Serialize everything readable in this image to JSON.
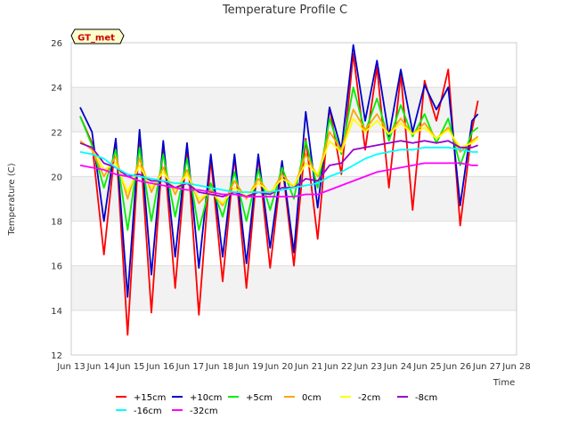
{
  "chart_data": {
    "type": "line",
    "title": "Temperature Profile C",
    "xlabel": "Time",
    "ylabel": "Temperature (C)",
    "ylim": [
      12,
      26
    ],
    "xlim": [
      13,
      28
    ],
    "y_ticks": [
      12,
      14,
      16,
      18,
      20,
      22,
      24,
      26
    ],
    "x_ticks": [
      {
        "v": 13,
        "label": "Jun 13"
      },
      {
        "v": 14,
        "label": "Jun 14"
      },
      {
        "v": 15,
        "label": "Jun 15"
      },
      {
        "v": 16,
        "label": "Jun 16"
      },
      {
        "v": 17,
        "label": "Jun 17"
      },
      {
        "v": 18,
        "label": "Jun 18"
      },
      {
        "v": 19,
        "label": "Jun 19"
      },
      {
        "v": 20,
        "label": "Jun 20"
      },
      {
        "v": 21,
        "label": "Jun 21"
      },
      {
        "v": 22,
        "label": "Jun 22"
      },
      {
        "v": 23,
        "label": "Jun 23"
      },
      {
        "v": 24,
        "label": "Jun 24"
      },
      {
        "v": 25,
        "label": "Jun 25"
      },
      {
        "v": 26,
        "label": "Jun 26"
      },
      {
        "v": 27,
        "label": "Jun 27"
      },
      {
        "v": 28,
        "label": "Jun 28"
      }
    ],
    "grid": true,
    "legend_position": "bottom",
    "annotation": {
      "text": "GT_met",
      "bg": "#ffffcc",
      "color": "#cc0000"
    },
    "x": [
      13.3,
      13.7,
      14.1,
      14.5,
      14.9,
      15.3,
      15.7,
      16.1,
      16.5,
      16.9,
      17.3,
      17.7,
      18.1,
      18.5,
      18.9,
      19.3,
      19.7,
      20.1,
      20.5,
      20.9,
      21.3,
      21.7,
      22.1,
      22.5,
      22.9,
      23.3,
      23.7,
      24.1,
      24.5,
      24.9,
      25.3,
      25.7,
      26.1,
      26.5,
      26.7
    ],
    "series": [
      {
        "name": "+15cm",
        "color": "#ff0000",
        "values": [
          22.7,
          21.5,
          16.5,
          21.6,
          12.9,
          21.8,
          13.9,
          21.5,
          15.0,
          21.4,
          13.8,
          20.8,
          15.3,
          20.9,
          15.0,
          20.9,
          15.9,
          20.6,
          16.0,
          21.7,
          17.2,
          23.1,
          20.1,
          25.5,
          21.2,
          24.9,
          19.5,
          24.6,
          18.5,
          24.3,
          22.5,
          24.8,
          17.8,
          22.1,
          23.4
        ]
      },
      {
        "name": "+10cm",
        "color": "#0000cc",
        "values": [
          23.1,
          22.0,
          18.0,
          21.7,
          14.6,
          22.1,
          15.6,
          21.6,
          16.4,
          21.5,
          15.9,
          21.0,
          16.4,
          21.0,
          16.1,
          21.0,
          16.8,
          20.7,
          16.6,
          22.9,
          18.6,
          23.1,
          21.2,
          25.9,
          22.5,
          25.2,
          21.8,
          24.8,
          22.0,
          24.1,
          23.0,
          24.0,
          18.7,
          22.5,
          22.8
        ]
      },
      {
        "name": "+5cm",
        "color": "#00ee00",
        "values": [
          22.7,
          21.4,
          19.5,
          21.2,
          17.6,
          21.3,
          18.0,
          21.0,
          18.2,
          20.8,
          17.6,
          19.7,
          18.2,
          20.2,
          18.0,
          20.3,
          18.5,
          20.4,
          19.0,
          21.6,
          19.5,
          22.6,
          21.0,
          24.0,
          22.0,
          23.5,
          21.6,
          23.2,
          21.8,
          22.8,
          21.5,
          22.6,
          20.5,
          22.0,
          22.2
        ]
      },
      {
        "name": "0cm",
        "color": "#ffa500",
        "values": [
          21.6,
          21.2,
          20.0,
          20.9,
          19.0,
          20.8,
          19.3,
          20.4,
          19.2,
          20.3,
          18.8,
          19.4,
          18.7,
          19.8,
          19.0,
          19.9,
          19.2,
          20.1,
          19.5,
          21.0,
          20.0,
          22.0,
          21.2,
          23.0,
          22.1,
          22.8,
          21.9,
          22.6,
          21.9,
          22.4,
          21.7,
          22.2,
          21.1,
          21.6,
          21.8
        ]
      },
      {
        "name": "-2cm",
        "color": "#ffff00",
        "values": [
          21.5,
          21.3,
          20.3,
          20.6,
          19.3,
          20.5,
          19.5,
          20.2,
          19.4,
          20.1,
          19.0,
          19.3,
          18.8,
          19.5,
          19.1,
          19.7,
          19.3,
          19.9,
          19.6,
          20.6,
          20.1,
          21.6,
          21.1,
          22.6,
          22.0,
          22.5,
          21.9,
          22.4,
          21.9,
          22.2,
          21.7,
          22.1,
          21.3,
          21.5,
          21.7
        ]
      },
      {
        "name": "-8cm",
        "color": "#9900cc",
        "values": [
          21.5,
          21.3,
          20.6,
          20.4,
          20.0,
          20.1,
          19.8,
          19.8,
          19.5,
          19.7,
          19.3,
          19.2,
          19.1,
          19.3,
          19.1,
          19.3,
          19.2,
          19.5,
          19.5,
          19.9,
          19.8,
          20.5,
          20.6,
          21.2,
          21.3,
          21.4,
          21.5,
          21.6,
          21.5,
          21.6,
          21.5,
          21.6,
          21.3,
          21.3,
          21.4
        ]
      },
      {
        "name": "-16cm",
        "color": "#00ffff",
        "values": [
          21.1,
          21.0,
          20.8,
          20.4,
          20.1,
          20.0,
          19.9,
          19.8,
          19.7,
          19.7,
          19.6,
          19.5,
          19.4,
          19.3,
          19.3,
          19.3,
          19.3,
          19.4,
          19.5,
          19.6,
          19.7,
          20.0,
          20.2,
          20.5,
          20.8,
          21.0,
          21.1,
          21.2,
          21.2,
          21.3,
          21.3,
          21.3,
          21.2,
          21.1,
          21.1
        ]
      },
      {
        "name": "-32cm",
        "color": "#ff00ff",
        "values": [
          20.5,
          20.4,
          20.3,
          20.1,
          20.0,
          19.8,
          19.7,
          19.6,
          19.5,
          19.4,
          19.4,
          19.3,
          19.2,
          19.2,
          19.1,
          19.1,
          19.1,
          19.1,
          19.1,
          19.2,
          19.2,
          19.4,
          19.6,
          19.8,
          20.0,
          20.2,
          20.3,
          20.4,
          20.5,
          20.6,
          20.6,
          20.6,
          20.6,
          20.5,
          20.5
        ]
      }
    ]
  }
}
